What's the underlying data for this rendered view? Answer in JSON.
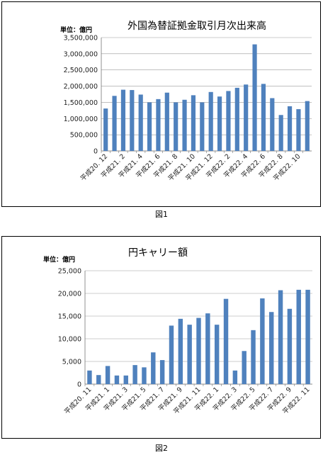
{
  "chart_data": [
    {
      "type": "bar",
      "title": "外国為替証拠金取引月次出来高",
      "unit_label": "単位：億円",
      "figure_label": "図1",
      "ylim": [
        0,
        3500000
      ],
      "yticks": [
        0,
        500000,
        1000000,
        1500000,
        2000000,
        2500000,
        3000000,
        3500000
      ],
      "ytick_labels": [
        "0",
        "500,000",
        "1,000,000",
        "1,500,000",
        "2,000,000",
        "2,500,000",
        "3,000,000",
        "3,500,000"
      ],
      "grid": true,
      "color": "#4f81bd",
      "categories": [
        "平成20. 12",
        "平成21. 1",
        "平成21. 2",
        "平成21. 3",
        "平成21. 4",
        "平成21. 5",
        "平成21. 6",
        "平成21. 7",
        "平成21. 8",
        "平成21. 9",
        "平成21. 10",
        "平成21. 11",
        "平成21. 12",
        "平成22. 1",
        "平成22. 2",
        "平成22. 3",
        "平成22. 4",
        "平成22. 5",
        "平成22. 6",
        "平成22. 7",
        "平成22. 8",
        "平成22. 9",
        "平成22. 10",
        "平成22. 11"
      ],
      "xtick_labels": [
        "平成20. 12",
        "",
        "平成21. 2",
        "",
        "平成21. 4",
        "",
        "平成21. 6",
        "",
        "平成21. 8",
        "",
        "平成21. 10",
        "",
        "平成21. 12",
        "",
        "平成22. 2",
        "",
        "平成22. 4",
        "",
        "平成22. 6",
        "",
        "平成22. 8",
        "",
        "平成22. 10",
        ""
      ],
      "values": [
        1310000,
        1700000,
        1890000,
        1880000,
        1740000,
        1500000,
        1600000,
        1800000,
        1500000,
        1580000,
        1720000,
        1500000,
        1820000,
        1680000,
        1850000,
        1950000,
        2050000,
        3290000,
        2070000,
        1630000,
        1110000,
        1380000,
        1290000,
        1540000
      ]
    },
    {
      "type": "bar",
      "title": "円キャリー額",
      "unit_label": "単位：億円",
      "figure_label": "図2",
      "ylim": [
        0,
        25000
      ],
      "yticks": [
        0,
        5000,
        10000,
        15000,
        20000,
        25000
      ],
      "ytick_labels": [
        "0",
        "5,000",
        "10,000",
        "15,000",
        "20,000",
        "25,000"
      ],
      "grid": true,
      "color": "#4f81bd",
      "categories": [
        "平成20. 11",
        "平成20. 12",
        "平成21. 1",
        "平成21. 2",
        "平成21. 3",
        "平成21. 4",
        "平成21. 5",
        "平成21. 6",
        "平成21. 7",
        "平成21. 8",
        "平成21. 9",
        "平成21. 10",
        "平成21. 11",
        "平成21. 12",
        "平成22. 1",
        "平成22. 2",
        "平成22. 3",
        "平成22. 4",
        "平成22. 5",
        "平成22. 6",
        "平成22. 7",
        "平成22. 8",
        "平成22. 9",
        "平成22. 10",
        "平成22. 11"
      ],
      "xtick_labels": [
        "平成20. 11",
        "",
        "平成21. 1",
        "",
        "平成21. 3",
        "",
        "平成21. 5",
        "",
        "平成21. 7",
        "",
        "平成21. 9",
        "",
        "平成21. 11",
        "",
        "平成22. 1",
        "",
        "平成22. 3",
        "",
        "平成22. 5",
        "",
        "平成22. 7",
        "",
        "平成22. 9",
        "",
        "平成22. 11"
      ],
      "values": [
        3000,
        2000,
        4000,
        1900,
        1900,
        4200,
        3700,
        7000,
        5300,
        12900,
        14400,
        13100,
        14600,
        15600,
        13100,
        18800,
        3000,
        7300,
        11900,
        18900,
        15900,
        20700,
        16600,
        20800,
        20800
      ]
    }
  ]
}
